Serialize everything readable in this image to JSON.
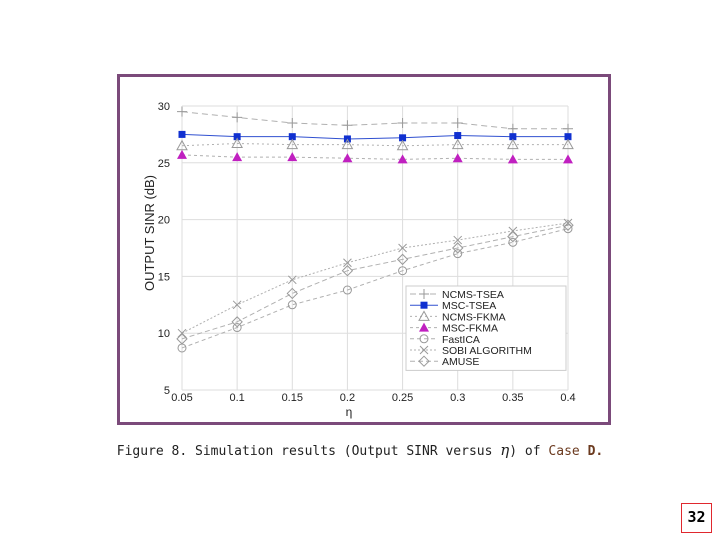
{
  "caption": {
    "prefix": "Figure 8. Simulation results (Output SINR versus",
    "symbol": "η",
    "middle": ") of",
    "case_word": "Case",
    "case_letter": "D."
  },
  "page_number": "32",
  "colors": {
    "frame": "#7b4a7a",
    "msc_tsea": "#1030d0",
    "msc_fkma": "#c020c0",
    "gray_lines": "#999999"
  },
  "chart_data": {
    "type": "line",
    "xlabel": "η",
    "ylabel": "OUTPUT SINR (dB)",
    "xlim": [
      0.05,
      0.4
    ],
    "ylim": [
      5,
      30
    ],
    "x_ticks": [
      "0.05",
      "0.1",
      "0.15",
      "0.2",
      "0.25",
      "0.3",
      "0.35",
      "0.4"
    ],
    "y_ticks": [
      "5",
      "10",
      "15",
      "20",
      "25",
      "30"
    ],
    "grid": true,
    "legend_position": "bottom-right",
    "categories": [
      0.05,
      0.1,
      0.15,
      0.2,
      0.25,
      0.3,
      0.35,
      0.4
    ],
    "series": [
      {
        "name": "NCMS-TSEA",
        "marker": "plus",
        "dash": "6,4",
        "values": [
          29.5,
          29.0,
          28.5,
          28.3,
          28.5,
          28.5,
          28.0,
          28.0
        ]
      },
      {
        "name": "MSC-TSEA",
        "marker": "square",
        "dash": "",
        "values": [
          27.5,
          27.3,
          27.3,
          27.1,
          27.2,
          27.4,
          27.3,
          27.3
        ]
      },
      {
        "name": "NCMS-FKMA",
        "marker": "triangle-open",
        "dash": "2,3",
        "values": [
          26.5,
          26.7,
          26.6,
          26.6,
          26.5,
          26.6,
          26.6,
          26.6
        ]
      },
      {
        "name": "MSC-FKMA",
        "marker": "triangle",
        "dash": "3,3",
        "values": [
          25.7,
          25.5,
          25.5,
          25.4,
          25.3,
          25.4,
          25.3,
          25.3
        ]
      },
      {
        "name": "FastICA",
        "marker": "circle-open",
        "dash": "4,3",
        "values": [
          8.7,
          10.5,
          12.5,
          13.8,
          15.5,
          17.0,
          18.0,
          19.2
        ]
      },
      {
        "name": "SOBI ALGORITHM",
        "marker": "x",
        "dash": "2,2",
        "values": [
          10.0,
          12.5,
          14.7,
          16.2,
          17.5,
          18.2,
          19.0,
          19.7
        ]
      },
      {
        "name": "AMUSE",
        "marker": "diamond-open",
        "dash": "5,3",
        "values": [
          9.5,
          11.0,
          13.5,
          15.5,
          16.5,
          17.5,
          18.5,
          19.5
        ]
      }
    ]
  }
}
